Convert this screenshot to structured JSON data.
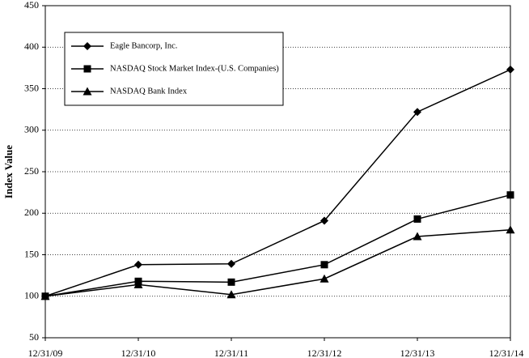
{
  "chart_data": {
    "type": "line",
    "y_label": "Index Value",
    "categories": [
      "12/31/09",
      "12/31/10",
      "12/31/11",
      "12/31/12",
      "12/31/13",
      "12/31/14"
    ],
    "series": [
      {
        "name": "Eagle Bancorp, Inc.",
        "color": "#000000",
        "marker": "diamond",
        "values": [
          100,
          138,
          139,
          191,
          322,
          373
        ]
      },
      {
        "name": "NASDAQ Stock Market Index-(U.S. Companies)",
        "color": "#000000",
        "marker": "square",
        "values": [
          100,
          118,
          117,
          138,
          193,
          222
        ]
      },
      {
        "name": "NASDAQ Bank Index",
        "color": "#000000",
        "marker": "triangle",
        "values": [
          100,
          114,
          102,
          121,
          172,
          180
        ]
      }
    ],
    "ylim": [
      50,
      450
    ],
    "yticks": [
      50,
      100,
      150,
      200,
      250,
      300,
      350,
      400,
      450
    ],
    "grid": true
  }
}
